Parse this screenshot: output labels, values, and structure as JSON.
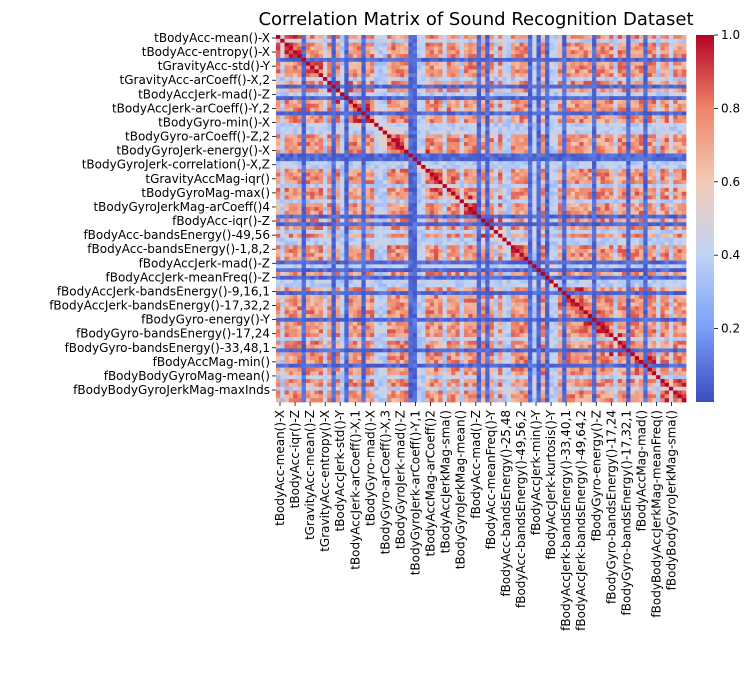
{
  "chart_data": {
    "type": "heatmap",
    "title": "Correlation Matrix of Sound Recognition Dataset",
    "xlabel": "",
    "ylabel": "",
    "colormap": "coolwarm",
    "colormap_stops": [
      "#3b4cc0",
      "#7b9ff9",
      "#c0d4f5",
      "#f2cbb7",
      "#ee8468",
      "#b40426"
    ],
    "value_range": [
      0.0,
      1.0
    ],
    "colorbar_ticks": [
      "0.2",
      "0.4",
      "0.6",
      "0.8",
      "1.0"
    ],
    "colorbar_tick_values": [
      0.2,
      0.4,
      0.6,
      0.8,
      1.0
    ],
    "y_tick_labels": [
      "tBodyAcc-mean()-X",
      "tBodyAcc-entropy()-X",
      "tGravityAcc-std()-Y",
      "tGravityAcc-arCoeff()-X,2",
      "tBodyAccJerk-mad()-Z",
      "tBodyAccJerk-arCoeff()-Y,2",
      "tBodyGyro-min()-X",
      "tBodyGyro-arCoeff()-Z,2",
      "tBodyGyroJerk-energy()-X",
      "tBodyGyroJerk-correlation()-X,Z",
      "tGravityAccMag-iqr()",
      "tBodyGyroMag-max()",
      "tBodyGyroJerkMag-arCoeff()4",
      "fBodyAcc-iqr()-Z",
      "fBodyAcc-bandsEnergy()-49,56",
      "fBodyAcc-bandsEnergy()-1,8,2",
      "fBodyAccJerk-mad()-Z",
      "fBodyAccJerk-meanFreq()-Z",
      "fBodyAccJerk-bandsEnergy()-9,16,1",
      "fBodyAccJerk-bandsEnergy()-17,32,2",
      "fBodyGyro-energy()-Y",
      "fBodyGyro-bandsEnergy()-17,24",
      "fBodyGyro-bandsEnergy()-33,48,1",
      "fBodyAccMag-min()",
      "fBodyBodyGyroMag-mean()",
      "fBodyBodyGyroJerkMag-maxInds"
    ],
    "x_tick_labels": [
      "tBodyAcc-mean()-X",
      "tBodyAcc-iqr()-Z",
      "tGravityAcc-mean()-Z",
      "tGravityAcc-entropy()-X",
      "tBodyAccJerk-std()-Y",
      "tBodyAccJerk-arCoeff()-X,1",
      "tBodyGyro-mad()-X",
      "tBodyGyro-arCoeff()-X,3",
      "tBodyGyroJerk-mad()-Z",
      "tBodyGyroJerk-arCoeff()-Y,1",
      "tBodyAccMag-arCoeff()2",
      "tBodyAccJerkMag-sma()",
      "tBodyGyroJerkMag-mean()",
      "fBodyAcc-mad()-Z",
      "fBodyAcc-meanFreq()-Y",
      "fBodyAcc-bandsEnergy()-25,48",
      "fBodyAcc-bandsEnergy()-49,56,2",
      "fBodyAccJerk-min()-Y",
      "fBodyAccJerk-kurtosis()-Y",
      "fBodyAccJerk-bandsEnergy()-33,40,1",
      "fBodyAccJerk-bandsEnergy()-49,64,2",
      "fBodyGyro-energy()-Z",
      "fBodyGyro-bandsEnergy()-17,24",
      "fBodyGyro-bandsEnergy()-17,32,1",
      "fBodyAccMag-mad()",
      "fBodyBodyAccJerkMag-meanFreq()",
      "fBodyBodyGyroJerkMag-sma()"
    ],
    "grid": false,
    "legend": "colorbar-right"
  }
}
